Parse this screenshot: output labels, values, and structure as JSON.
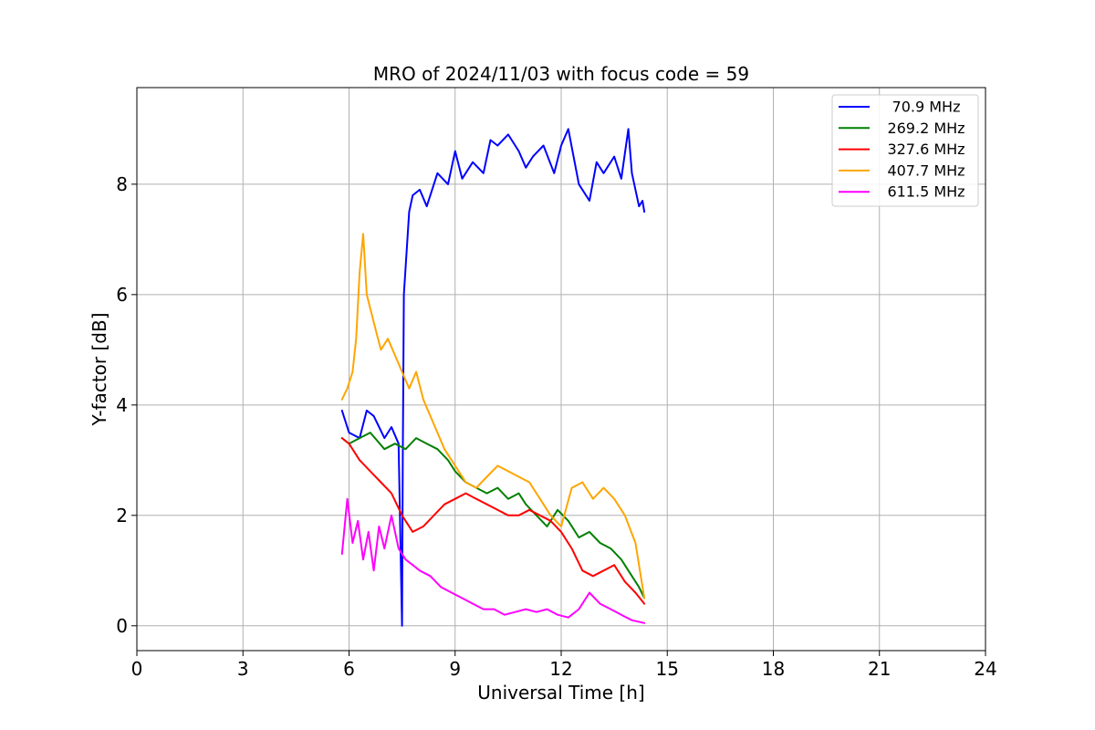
{
  "chart_data": {
    "type": "line",
    "title": "MRO of 2024/11/03 with focus code = 59",
    "xlabel": "Universal Time [h]",
    "ylabel": "Y-factor [dB]",
    "xlim": [
      0,
      24
    ],
    "ylim": [
      -0.45,
      9.75
    ],
    "xticks": [
      0,
      3,
      6,
      9,
      12,
      15,
      18,
      21,
      24
    ],
    "yticks": [
      0,
      2,
      4,
      6,
      8
    ],
    "grid": true,
    "legend_position": "top-right",
    "series": [
      {
        "name": " 70.9 MHz",
        "color": "#0000ff",
        "x": [
          5.8,
          6.0,
          6.3,
          6.5,
          6.7,
          7.0,
          7.2,
          7.4,
          7.5,
          7.52,
          7.55,
          7.7,
          7.8,
          8.0,
          8.2,
          8.5,
          8.8,
          9.0,
          9.2,
          9.5,
          9.8,
          10.0,
          10.2,
          10.5,
          10.8,
          11.0,
          11.2,
          11.5,
          11.8,
          12.0,
          12.2,
          12.5,
          12.8,
          13.0,
          13.2,
          13.5,
          13.7,
          13.9,
          14.0,
          14.2,
          14.3,
          14.35
        ],
        "y": [
          3.9,
          3.5,
          3.4,
          3.9,
          3.8,
          3.4,
          3.6,
          3.3,
          0.0,
          3.0,
          6.0,
          7.5,
          7.8,
          7.9,
          7.6,
          8.2,
          8.0,
          8.6,
          8.1,
          8.4,
          8.2,
          8.8,
          8.7,
          8.9,
          8.6,
          8.3,
          8.5,
          8.7,
          8.2,
          8.7,
          9.0,
          8.0,
          7.7,
          8.4,
          8.2,
          8.5,
          8.1,
          9.0,
          8.2,
          7.6,
          7.7,
          7.5
        ]
      },
      {
        "name": "269.2 MHz",
        "color": "#008000",
        "x": [
          5.8,
          6.0,
          6.3,
          6.6,
          7.0,
          7.3,
          7.6,
          7.9,
          8.2,
          8.5,
          8.8,
          9.0,
          9.3,
          9.6,
          9.9,
          10.2,
          10.5,
          10.8,
          11.0,
          11.3,
          11.6,
          11.9,
          12.2,
          12.5,
          12.8,
          13.1,
          13.4,
          13.7,
          14.0,
          14.2,
          14.35
        ],
        "y": [
          3.4,
          3.3,
          3.4,
          3.5,
          3.2,
          3.3,
          3.2,
          3.4,
          3.3,
          3.2,
          3.0,
          2.8,
          2.6,
          2.5,
          2.4,
          2.5,
          2.3,
          2.4,
          2.2,
          2.0,
          1.8,
          2.1,
          1.9,
          1.6,
          1.7,
          1.5,
          1.4,
          1.2,
          0.9,
          0.7,
          0.5
        ]
      },
      {
        "name": "327.6 MHz",
        "color": "#ff0000",
        "x": [
          5.8,
          6.0,
          6.3,
          6.6,
          6.9,
          7.2,
          7.5,
          7.8,
          8.1,
          8.4,
          8.7,
          9.0,
          9.3,
          9.6,
          9.9,
          10.2,
          10.5,
          10.8,
          11.1,
          11.4,
          11.7,
          12.0,
          12.3,
          12.6,
          12.9,
          13.2,
          13.5,
          13.8,
          14.1,
          14.35
        ],
        "y": [
          3.4,
          3.3,
          3.0,
          2.8,
          2.6,
          2.4,
          2.0,
          1.7,
          1.8,
          2.0,
          2.2,
          2.3,
          2.4,
          2.3,
          2.2,
          2.1,
          2.0,
          2.0,
          2.1,
          2.0,
          1.9,
          1.7,
          1.4,
          1.0,
          0.9,
          1.0,
          1.1,
          0.8,
          0.6,
          0.4
        ]
      },
      {
        "name": "407.7 MHz",
        "color": "#ffa500",
        "x": [
          5.8,
          5.95,
          6.1,
          6.2,
          6.3,
          6.4,
          6.5,
          6.7,
          6.9,
          7.1,
          7.3,
          7.5,
          7.7,
          7.9,
          8.1,
          8.3,
          8.5,
          8.7,
          9.0,
          9.3,
          9.6,
          9.9,
          10.2,
          10.5,
          10.8,
          11.1,
          11.4,
          11.7,
          12.0,
          12.3,
          12.6,
          12.9,
          13.2,
          13.5,
          13.8,
          14.1,
          14.35
        ],
        "y": [
          4.1,
          4.3,
          4.6,
          5.2,
          6.4,
          7.1,
          6.0,
          5.5,
          5.0,
          5.2,
          4.9,
          4.6,
          4.3,
          4.6,
          4.1,
          3.8,
          3.5,
          3.2,
          2.9,
          2.6,
          2.5,
          2.7,
          2.9,
          2.8,
          2.7,
          2.6,
          2.3,
          2.0,
          1.8,
          2.5,
          2.6,
          2.3,
          2.5,
          2.3,
          2.0,
          1.5,
          0.5
        ]
      },
      {
        "name": "611.5 MHz",
        "color": "#ff00ff",
        "x": [
          5.8,
          5.95,
          6.1,
          6.25,
          6.4,
          6.55,
          6.7,
          6.85,
          7.0,
          7.2,
          7.4,
          7.6,
          7.8,
          8.0,
          8.3,
          8.6,
          8.9,
          9.2,
          9.5,
          9.8,
          10.1,
          10.4,
          10.7,
          11.0,
          11.3,
          11.6,
          11.9,
          12.2,
          12.5,
          12.8,
          13.1,
          13.4,
          13.7,
          14.0,
          14.35
        ],
        "y": [
          1.3,
          2.3,
          1.5,
          1.9,
          1.2,
          1.7,
          1.0,
          1.8,
          1.4,
          2.0,
          1.4,
          1.2,
          1.1,
          1.0,
          0.9,
          0.7,
          0.6,
          0.5,
          0.4,
          0.3,
          0.3,
          0.2,
          0.25,
          0.3,
          0.25,
          0.3,
          0.2,
          0.15,
          0.3,
          0.6,
          0.4,
          0.3,
          0.2,
          0.1,
          0.05
        ]
      }
    ]
  }
}
